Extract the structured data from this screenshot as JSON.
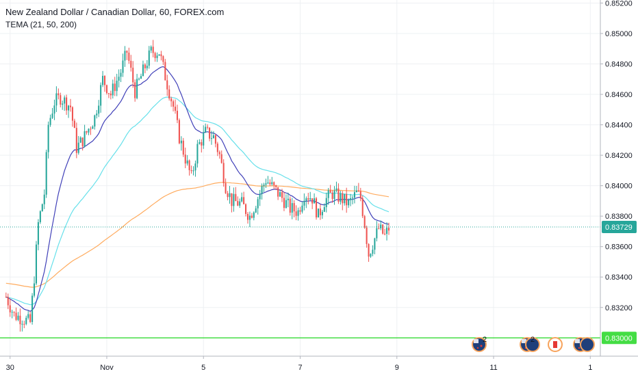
{
  "header": {
    "title": "New Zealand Dollar / Canadian Dollar, 60, FOREX.com",
    "indicator": "TEMA (21, 50, 200)"
  },
  "colors": {
    "up": "#26a69a",
    "down": "#ef5350",
    "ema21": "#3f3fb8",
    "ema50": "#66e0ea",
    "ema200": "#ffab5e",
    "level_line": "#44dd44",
    "current_price": "#26a69a"
  },
  "events": [
    {
      "type": "flag-icon",
      "currency": "NZD",
      "count": "2"
    },
    {
      "type": "flag-icon",
      "currency": "NZD",
      "count": "2"
    },
    {
      "type": "flag-icon",
      "currency": "CAD",
      "count": ""
    },
    {
      "type": "flag-icon",
      "currency": "NZD",
      "count": ""
    }
  ],
  "chart_data": {
    "type": "candlestick",
    "y_ticks": [
      "0.85200",
      "0.85000",
      "0.84800",
      "0.84600",
      "0.84400",
      "0.84200",
      "0.84000",
      "0.83800",
      "0.83600",
      "0.83400",
      "0.83200"
    ],
    "ylim": [
      0.8288,
      0.8522
    ],
    "x_ticks": [
      {
        "label": "30",
        "t": 0
      },
      {
        "label": "Nov",
        "t": 48
      },
      {
        "label": "5",
        "t": 96
      },
      {
        "label": "7",
        "t": 144
      },
      {
        "label": "9",
        "t": 192
      },
      {
        "label": "11",
        "t": 240
      },
      {
        "label": "1",
        "t": 288
      }
    ],
    "xlim": [
      -5,
      293
    ],
    "current_price": "0.83729",
    "level_price": "0.83000",
    "waypoints": [
      [
        -2,
        0.8327
      ],
      [
        2,
        0.8315
      ],
      [
        6,
        0.8313
      ],
      [
        10,
        0.831
      ],
      [
        12,
        0.834
      ],
      [
        14,
        0.8375
      ],
      [
        17,
        0.8395
      ],
      [
        19,
        0.844
      ],
      [
        22,
        0.8455
      ],
      [
        25,
        0.8458
      ],
      [
        30,
        0.8452
      ],
      [
        33,
        0.8425
      ],
      [
        36,
        0.843
      ],
      [
        42,
        0.8445
      ],
      [
        46,
        0.847
      ],
      [
        50,
        0.846
      ],
      [
        55,
        0.8475
      ],
      [
        58,
        0.8488
      ],
      [
        62,
        0.8462
      ],
      [
        66,
        0.8475
      ],
      [
        70,
        0.8488
      ],
      [
        74,
        0.8488
      ],
      [
        77,
        0.8472
      ],
      [
        81,
        0.8452
      ],
      [
        84,
        0.8432
      ],
      [
        87,
        0.8418
      ],
      [
        90,
        0.8405
      ],
      [
        93,
        0.8425
      ],
      [
        97,
        0.8435
      ],
      [
        101,
        0.8432
      ],
      [
        104,
        0.842
      ],
      [
        107,
        0.84
      ],
      [
        110,
        0.839
      ],
      [
        115,
        0.8388
      ],
      [
        119,
        0.838
      ],
      [
        123,
        0.8392
      ],
      [
        127,
        0.8404
      ],
      [
        131,
        0.8398
      ],
      [
        135,
        0.8392
      ],
      [
        139,
        0.8385
      ],
      [
        143,
        0.8383
      ],
      [
        146,
        0.8395
      ],
      [
        150,
        0.8392
      ],
      [
        153,
        0.838
      ],
      [
        156,
        0.839
      ],
      [
        160,
        0.8395
      ],
      [
        164,
        0.8392
      ],
      [
        168,
        0.8388
      ],
      [
        172,
        0.8395
      ],
      [
        174,
        0.8392
      ],
      [
        176,
        0.8375
      ],
      [
        178,
        0.8355
      ],
      [
        180,
        0.8362
      ],
      [
        183,
        0.8372
      ],
      [
        186,
        0.8367
      ],
      [
        188,
        0.8372
      ]
    ],
    "series": [
      {
        "name": "",
        "type": "ema",
        "period": 21
      },
      {
        "name": "",
        "type": "ema",
        "period": 50
      },
      {
        "name": "",
        "type": "ema",
        "period": 200,
        "seed": 0.8336
      }
    ]
  }
}
